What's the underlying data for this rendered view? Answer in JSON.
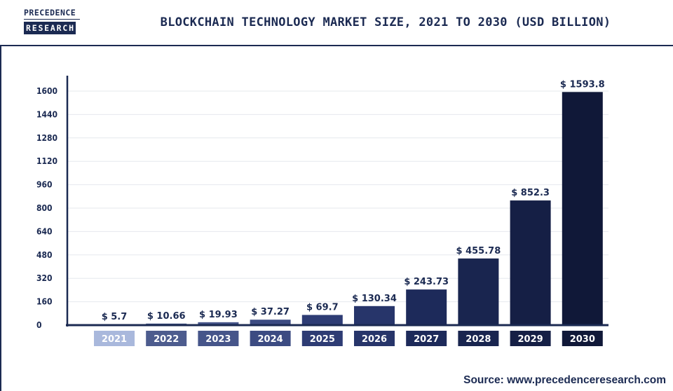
{
  "logo": {
    "line1": "PRECEDENCE",
    "line2": "RESEARCH"
  },
  "chart_data": {
    "type": "bar",
    "title": "BLOCKCHAIN TECHNOLOGY MARKET SIZE, 2021 TO 2030 (USD BILLION)",
    "xlabel": "",
    "ylabel": "",
    "categories": [
      "2021",
      "2022",
      "2023",
      "2024",
      "2025",
      "2026",
      "2027",
      "2028",
      "2029",
      "2030"
    ],
    "values": [
      5.7,
      10.66,
      19.93,
      37.27,
      69.7,
      130.34,
      243.73,
      455.78,
      852.3,
      1593.8
    ],
    "data_labels": [
      "$ 5.7",
      "$ 10.66",
      "$ 19.93",
      "$ 37.27",
      "$ 69.7",
      "$ 130.34",
      "$ 243.73",
      "$ 455.78",
      "$ 852.3",
      "$ 1593.8"
    ],
    "ylim": [
      0,
      1600
    ],
    "yticks": [
      0,
      160,
      320,
      480,
      640,
      800,
      960,
      1120,
      1280,
      1440,
      1600
    ],
    "grid": true,
    "colors": [
      "#a9b8dc",
      "#4d5c8e",
      "#46558a",
      "#3c4b82",
      "#2e3c74",
      "#27356a",
      "#1d2a5a",
      "#19254f",
      "#151f45",
      "#101838"
    ]
  },
  "source": "Source: www.precedenceresearch.com"
}
